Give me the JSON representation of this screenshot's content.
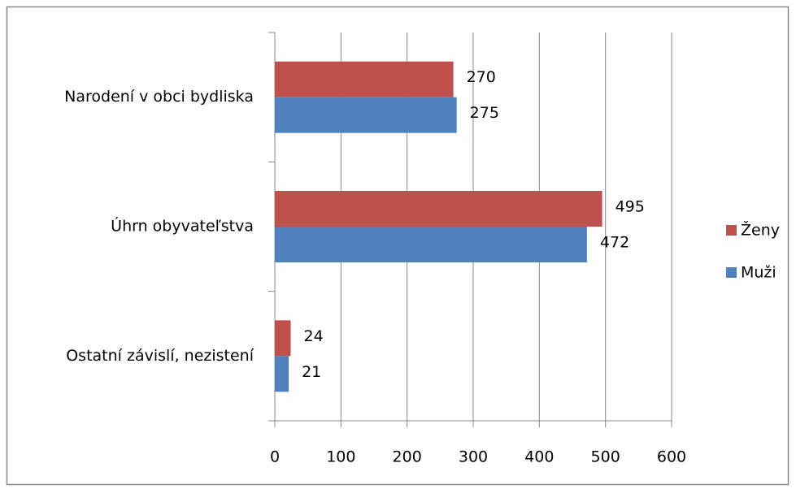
{
  "chart_data": {
    "type": "hbar",
    "categories": [
      "Narodení v obci bydliska",
      "Úhrn obyvateľstva",
      "Ostatní závislí, nezistení"
    ],
    "series": [
      {
        "name": "Ženy",
        "color": "#c0504d",
        "values": [
          270,
          495,
          24
        ]
      },
      {
        "name": "Muži",
        "color": "#4f81bd",
        "values": [
          275,
          472,
          21
        ]
      }
    ],
    "xlim": [
      0,
      600
    ],
    "xticks": [
      0,
      100,
      200,
      300,
      400,
      500,
      600
    ],
    "grid": true,
    "legend": "right"
  }
}
